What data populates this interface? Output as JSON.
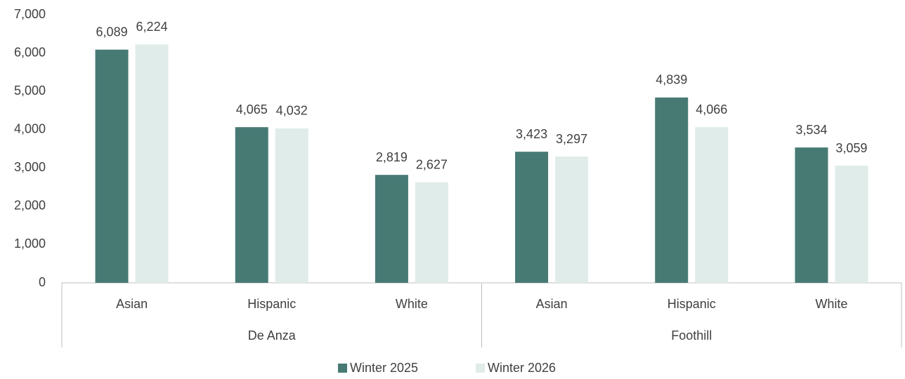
{
  "chart_data": {
    "type": "bar",
    "groups": [
      {
        "name": "De Anza",
        "categories": [
          "Asian",
          "Hispanic",
          "White"
        ]
      },
      {
        "name": "Foothill",
        "categories": [
          "Asian",
          "Hispanic",
          "White"
        ]
      }
    ],
    "series": [
      {
        "name": "Winter 2025",
        "color": "#487a74",
        "values": [
          6089,
          4065,
          2819,
          3423,
          4839,
          3534
        ],
        "value_labels": [
          "6,089",
          "4,065",
          "2,819",
          "3,423",
          "4,839",
          "3,534"
        ]
      },
      {
        "name": "Winter 2026",
        "color": "#dfecea",
        "values": [
          6224,
          4032,
          2627,
          3297,
          4066,
          3059
        ],
        "value_labels": [
          "6,224",
          "4,032",
          "2,627",
          "3,297",
          "4,066",
          "3,059"
        ]
      }
    ],
    "ylim": [
      0,
      7000
    ],
    "yticks": [
      0,
      {
        "value": 1000,
        "label": "1,000"
      },
      {
        "value": 2000,
        "label": "2,000"
      },
      {
        "value": 3000,
        "label": "3,000"
      },
      {
        "value": 4000,
        "label": "4,000"
      },
      {
        "value": 5000,
        "label": "5,000"
      },
      {
        "value": 6000,
        "label": "6,000"
      },
      {
        "value": 7000,
        "label": "7,000"
      }
    ],
    "grid": false,
    "legend": "bottom"
  }
}
